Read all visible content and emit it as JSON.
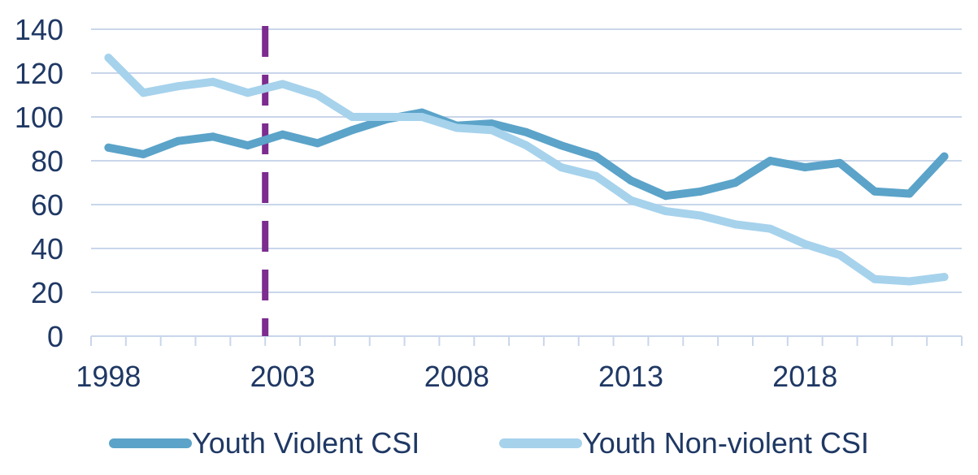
{
  "chart_data": {
    "type": "line",
    "title": "",
    "xlabel": "",
    "ylabel": "",
    "x": [
      1998,
      1999,
      2000,
      2001,
      2002,
      2003,
      2004,
      2005,
      2006,
      2007,
      2008,
      2009,
      2010,
      2011,
      2012,
      2013,
      2014,
      2015,
      2016,
      2017,
      2018,
      2019,
      2020,
      2021,
      2022
    ],
    "xticks": [
      "1998",
      "2003",
      "2008",
      "2013",
      "2018"
    ],
    "ylim": [
      0,
      140
    ],
    "yticks": [
      "0",
      "20",
      "40",
      "60",
      "80",
      "100",
      "120",
      "140"
    ],
    "grid": "horizontal",
    "legend_position": "bottom",
    "series": [
      {
        "name": "Youth Violent CSI",
        "color": "#5ba3c9",
        "values": [
          86,
          83,
          89,
          91,
          87,
          92,
          88,
          94,
          99,
          102,
          96,
          97,
          93,
          87,
          82,
          71,
          64,
          66,
          70,
          80,
          77,
          79,
          66,
          65,
          82
        ]
      },
      {
        "name": "Youth Non-violent CSI",
        "color": "#a6d2ec",
        "values": [
          127,
          111,
          114,
          116,
          111,
          115,
          110,
          100,
          100,
          100,
          95,
          94,
          87,
          77,
          73,
          62,
          57,
          55,
          51,
          49,
          42,
          37,
          26,
          25,
          27
        ]
      }
    ],
    "vertical_marker": {
      "x": 2002.5,
      "color": "#7b2c8e",
      "style": "dashed"
    }
  }
}
